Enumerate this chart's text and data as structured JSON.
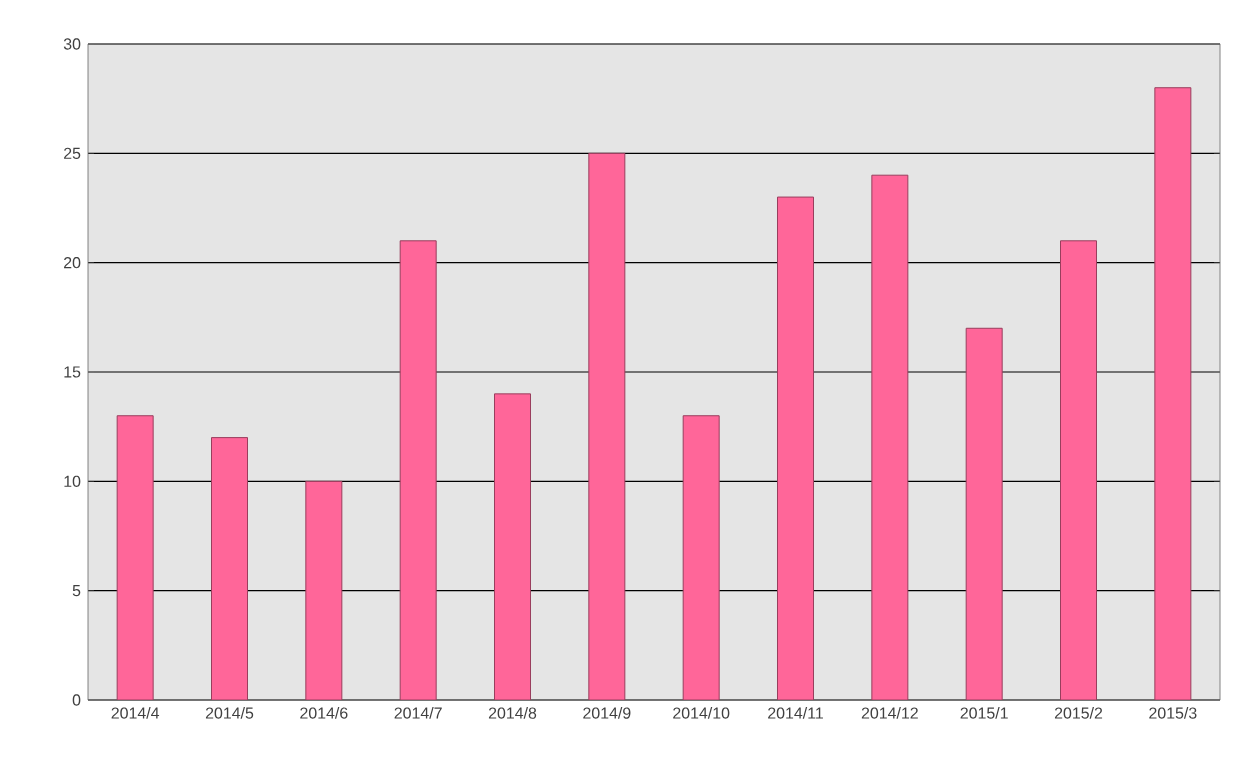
{
  "chart_data": {
    "type": "bar",
    "categories": [
      "2014/4",
      "2014/5",
      "2014/6",
      "2014/7",
      "2014/8",
      "2014/9",
      "2014/10",
      "2014/11",
      "2014/12",
      "2015/1",
      "2015/2",
      "2015/3"
    ],
    "values": [
      13,
      12,
      10,
      21,
      14,
      25,
      13,
      23,
      24,
      17,
      21,
      28
    ],
    "color": "#ff6699",
    "ylim": [
      0,
      30
    ],
    "yticks": [
      0,
      5,
      10,
      15,
      20,
      25,
      30
    ],
    "grid": "y"
  }
}
